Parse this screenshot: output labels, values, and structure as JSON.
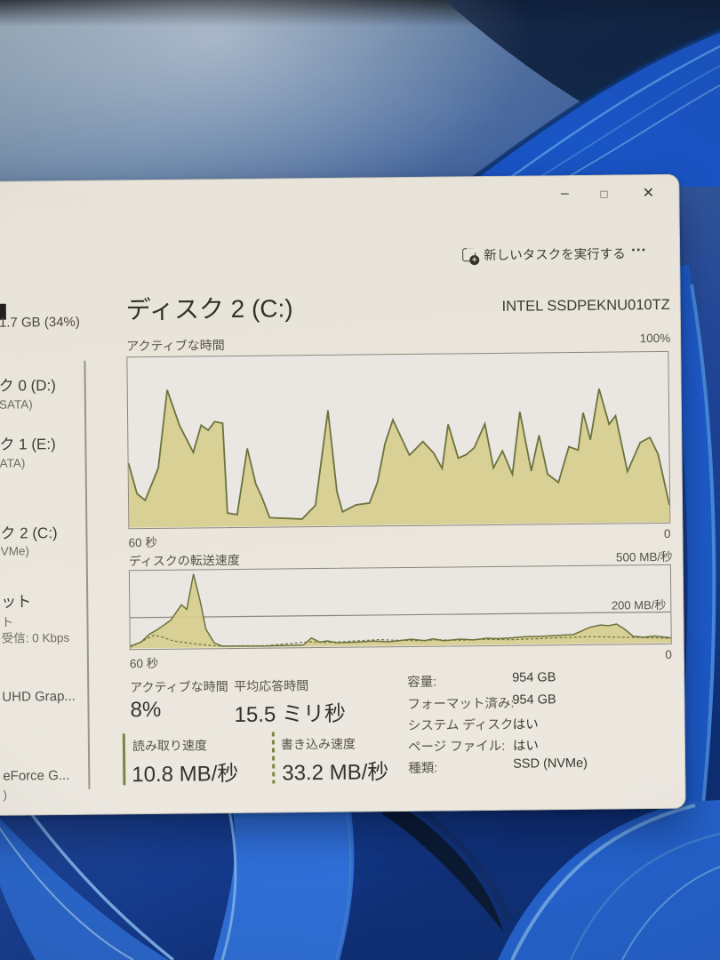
{
  "wallpaper": {
    "glare": "camera flash glare top-left",
    "base_blue": "#2a4f9a",
    "ribbon_blue": "#2462cc",
    "ribbon_highlight": "#6aa2e2",
    "dark_corner": "#0e2140"
  },
  "window": {
    "titlebar": {
      "minimize_icon": "–",
      "maximize_icon": "□",
      "close_icon": "✕"
    },
    "toolbar": {
      "run_new_task_label": "新しいタスクを実行する",
      "more_label": "..."
    },
    "sidebar": {
      "memory_fragment": "1.7 GB (34%)",
      "disk0_name": "ク 0 (D:)",
      "disk0_sub": "SATA)",
      "disk1_name": "ク 1 (E:)",
      "disk1_sub": "ATA)",
      "disk2_name": "ク 2 (C:)",
      "disk2_sub": "VMe)",
      "ethernet_name": "ット",
      "ethernet_sub": "ト",
      "ethernet_detail": "受信: 0 Kbps",
      "gpu0_name": "UHD Grap...",
      "gpu1_name": "eForce G...",
      "gpu1_sub": ")"
    },
    "header": {
      "title": "ディスク 2 (C:)",
      "device": "INTEL SSDPEKNU010TZ"
    },
    "charts": {
      "active_time": {
        "type": "area",
        "label": "アクティブな時間",
        "max_label": "100%",
        "axis_left": "60 秒",
        "axis_right": "0",
        "ylim": [
          0,
          100
        ],
        "fill_color": "rgba(214,205,138,0.88)",
        "line_color": "#6b733f",
        "points": [
          [
            0,
            38
          ],
          [
            1.5,
            20
          ],
          [
            3,
            16
          ],
          [
            5.5,
            35
          ],
          [
            7.3,
            81
          ],
          [
            9.5,
            60
          ],
          [
            12,
            44
          ],
          [
            13.5,
            60
          ],
          [
            14.8,
            57
          ],
          [
            16,
            62
          ],
          [
            17.5,
            61
          ],
          [
            18.2,
            8
          ],
          [
            20,
            7
          ],
          [
            22,
            46
          ],
          [
            23.5,
            25
          ],
          [
            24.5,
            18
          ],
          [
            26,
            5
          ],
          [
            32,
            4
          ],
          [
            34.5,
            12
          ],
          [
            37,
            68
          ],
          [
            38.5,
            20
          ],
          [
            39.5,
            8
          ],
          [
            42,
            12
          ],
          [
            44.5,
            13
          ],
          [
            46,
            25
          ],
          [
            47.5,
            48
          ],
          [
            49,
            62
          ],
          [
            52,
            41
          ],
          [
            54.5,
            49
          ],
          [
            56.5,
            42
          ],
          [
            58,
            33
          ],
          [
            59.2,
            59
          ],
          [
            61,
            39
          ],
          [
            62.5,
            41
          ],
          [
            64,
            45
          ],
          [
            66,
            59
          ],
          [
            67.5,
            33
          ],
          [
            69.2,
            43
          ],
          [
            71,
            29
          ],
          [
            72.5,
            66
          ],
          [
            74.5,
            31
          ],
          [
            76,
            52
          ],
          [
            77.5,
            29
          ],
          [
            79.5,
            24
          ],
          [
            81.5,
            45
          ],
          [
            83.2,
            43
          ],
          [
            84.2,
            65
          ],
          [
            85.5,
            49
          ],
          [
            87.2,
            79
          ],
          [
            89,
            58
          ],
          [
            90.2,
            63
          ],
          [
            92.3,
            30
          ],
          [
            94.7,
            47
          ],
          [
            96.5,
            50
          ],
          [
            98,
            40
          ],
          [
            100,
            10
          ]
        ]
      },
      "transfer": {
        "type": "area+line",
        "label": "ディスクの転送速度",
        "max_label": "500 MB/秒",
        "grid_label": "200 MB/秒",
        "grid_value": 200,
        "axis_left": "60 秒",
        "axis_right": "0",
        "ylim": [
          0,
          500
        ],
        "fill_color": "rgba(214,205,138,0.88)",
        "line_color": "#6b733f",
        "total_points": [
          [
            0,
            15
          ],
          [
            2,
            40
          ],
          [
            3.5,
            90
          ],
          [
            5,
            120
          ],
          [
            7.5,
            180
          ],
          [
            9.5,
            280
          ],
          [
            10.5,
            250
          ],
          [
            11.8,
            480
          ],
          [
            13,
            300
          ],
          [
            14,
            120
          ],
          [
            15.5,
            30
          ],
          [
            17,
            8
          ],
          [
            25,
            6
          ],
          [
            32,
            10
          ],
          [
            33.5,
            55
          ],
          [
            35,
            28
          ],
          [
            36.5,
            35
          ],
          [
            38,
            22
          ],
          [
            42,
            25
          ],
          [
            45,
            30
          ],
          [
            48,
            25
          ],
          [
            52,
            40
          ],
          [
            54.5,
            30
          ],
          [
            56,
            42
          ],
          [
            58,
            28
          ],
          [
            61,
            38
          ],
          [
            63.5,
            32
          ],
          [
            66,
            42
          ],
          [
            68,
            38
          ],
          [
            70.5,
            42
          ],
          [
            73,
            48
          ],
          [
            76,
            50
          ],
          [
            79,
            55
          ],
          [
            82,
            60
          ],
          [
            85,
            105
          ],
          [
            87,
            120
          ],
          [
            88.5,
            115
          ],
          [
            90,
            125
          ],
          [
            91.5,
            90
          ],
          [
            93,
            45
          ],
          [
            95,
            38
          ],
          [
            97,
            45
          ],
          [
            100,
            32
          ]
        ],
        "write_points": [
          [
            0,
            8
          ],
          [
            3,
            60
          ],
          [
            4.5,
            85
          ],
          [
            6,
            70
          ],
          [
            8,
            45
          ],
          [
            10,
            35
          ],
          [
            13,
            20
          ],
          [
            16,
            10
          ],
          [
            25,
            8
          ],
          [
            33,
            30
          ],
          [
            36,
            25
          ],
          [
            40,
            30
          ],
          [
            43,
            35
          ],
          [
            46,
            40
          ],
          [
            49,
            35
          ],
          [
            53,
            30
          ],
          [
            57,
            35
          ],
          [
            61,
            30
          ],
          [
            65,
            35
          ],
          [
            70,
            30
          ],
          [
            75,
            35
          ],
          [
            80,
            40
          ],
          [
            85,
            45
          ],
          [
            90,
            40
          ],
          [
            95,
            35
          ],
          [
            100,
            28
          ]
        ]
      }
    },
    "stats": {
      "active_time_label": "アクティブな時間",
      "active_time_value": "8%",
      "avg_response_label": "平均応答時間",
      "avg_response_value": "15.5 ミリ秒",
      "read_label": "読み取り速度",
      "read_value": "10.8 MB/秒",
      "write_label": "書き込み速度",
      "write_value": "33.2 MB/秒",
      "accent_green": "#79883e"
    },
    "details": {
      "rows": [
        {
          "label": "容量:",
          "value": "954 GB"
        },
        {
          "label": "フォーマット済み:",
          "value": "954 GB"
        },
        {
          "label": "システム ディスク:",
          "value": "はい"
        },
        {
          "label": "ページ ファイル:",
          "value": "はい"
        },
        {
          "label": "種類:",
          "value": "SSD (NVMe)"
        }
      ]
    }
  }
}
